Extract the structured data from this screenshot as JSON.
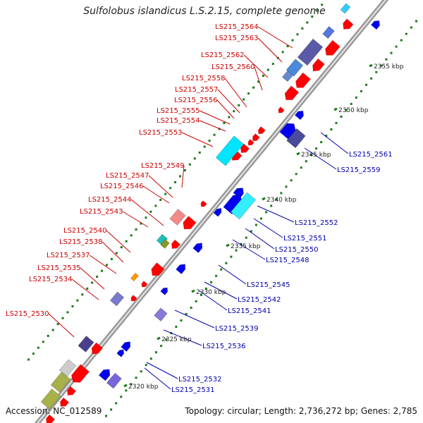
{
  "title": "Sulfolobus islandicus L.S.2.15, complete genome",
  "footer": {
    "accession": "Accession: NC_012589",
    "summary": "Topology: circular; Length: 2,736,272 bp; Genes: 2,785"
  },
  "colors": {
    "backbone": "#999999",
    "tick": "#1a7a1a",
    "forward_label": "#cc0000",
    "reverse_label": "#0000aa",
    "forward_gene": "#ff0000",
    "reverse_gene": "#0000ee"
  },
  "kbp_labels": [
    {
      "text": "2355 kbp",
      "t": 1.0
    },
    {
      "text": "2350 kbp",
      "t": 0.0
    },
    {
      "text": "2345 kbp",
      "t": 0.0
    },
    {
      "text": "2340 kbp",
      "t": 0.0
    },
    {
      "text": "2335 kbp",
      "t": 0.0
    },
    {
      "text": "2330 kbp",
      "t": 0.0
    },
    {
      "text": "2325 kbp",
      "t": 0.0
    },
    {
      "text": "2320 kbp",
      "t": 0.0
    }
  ],
  "forward_labels": [
    "LS215_2564",
    "LS215_2563",
    "LS215_2562",
    "LS215_2560",
    "LS215_2558",
    "LS215_2557",
    "LS215_2556",
    "LS215_2555",
    "LS215_2554",
    "LS215_2553",
    "LS215_2549",
    "LS215_2547",
    "LS215_2546",
    "LS215_2544",
    "LS215_2543",
    "LS215_2540",
    "LS215_2538",
    "LS215_2537",
    "LS215_2535",
    "LS215_2534",
    "LS215_2530"
  ],
  "reverse_labels": [
    "LS215_2561",
    "LS215_2559",
    "LS215_2552",
    "LS215_2551",
    "LS215_2550",
    "LS215_2548",
    "LS215_2545",
    "LS215_2542",
    "LS215_2541",
    "LS215_2539",
    "LS215_2536",
    "LS215_2532",
    "LS215_2531"
  ]
}
